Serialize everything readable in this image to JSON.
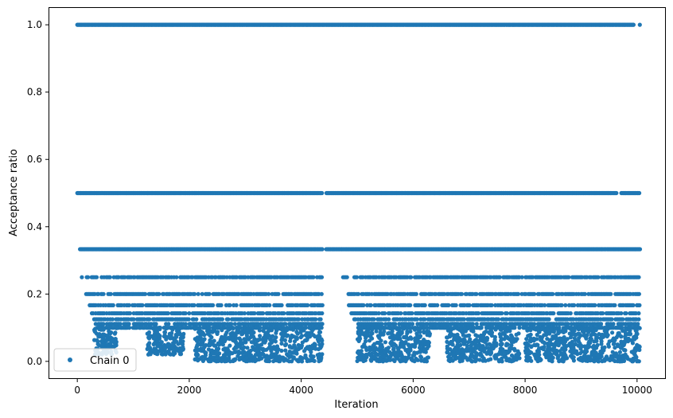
{
  "chart_data": {
    "type": "scatter",
    "title": "",
    "xlabel": "Iteration",
    "ylabel": "Acceptance ratio",
    "xlim": [
      -500,
      10500
    ],
    "ylim": [
      -0.05,
      1.05
    ],
    "xticks": [
      0,
      2000,
      4000,
      6000,
      8000,
      10000
    ],
    "xtick_labels": [
      "0",
      "2000",
      "4000",
      "6000",
      "8000",
      "10000"
    ],
    "yticks": [
      0.0,
      0.2,
      0.4,
      0.6,
      0.8,
      1.0
    ],
    "ytick_labels": [
      "0.0",
      "0.2",
      "0.4",
      "0.6",
      "0.8",
      "1.0"
    ],
    "grid": false,
    "legend": {
      "position": "lower-left",
      "entries": [
        "Chain 0"
      ]
    },
    "series": [
      {
        "name": "Chain 0",
        "color": "#1f77b4",
        "marker": "circle",
        "bands": [
          {
            "y": 1.0,
            "x_ranges": [
              [
                0,
                9950
              ],
              [
                10050,
                10050
              ]
            ]
          },
          {
            "y": 0.5,
            "x_ranges": [
              [
                0,
                4380
              ],
              [
                4450,
                9630
              ],
              [
                9720,
                10050
              ]
            ]
          },
          {
            "y": 0.3333,
            "x_ranges": [
              [
                50,
                4380
              ],
              [
                4450,
                10050
              ]
            ]
          },
          {
            "y": 0.25,
            "x_ranges": [
              [
                80,
                4380
              ],
              [
                4750,
                4820
              ],
              [
                4950,
                10050
              ]
            ]
          },
          {
            "y": 0.2,
            "x_ranges": [
              [
                160,
                4380
              ],
              [
                4800,
                10050
              ]
            ]
          },
          {
            "y": 0.1667,
            "x_ranges": [
              [
                220,
                4380
              ],
              [
                4850,
                10050
              ]
            ]
          },
          {
            "y": 0.1429,
            "x_ranges": [
              [
                260,
                4380
              ],
              [
                4900,
                10050
              ]
            ]
          },
          {
            "y": 0.125,
            "x_ranges": [
              [
                300,
                4380
              ],
              [
                4950,
                10050
              ]
            ]
          },
          {
            "y": 0.1111,
            "x_ranges": [
              [
                330,
                4380
              ],
              [
                5000,
                10050
              ]
            ]
          },
          {
            "y": 0.1,
            "x_ranges": [
              [
                360,
                4380
              ],
              [
                5020,
                10050
              ]
            ]
          }
        ],
        "dense_clusters": [
          {
            "x_range": [
              300,
              700
            ],
            "y_range": [
              0.02,
              0.1
            ]
          },
          {
            "x_range": [
              1250,
              1900
            ],
            "y_range": [
              0.02,
              0.1
            ]
          },
          {
            "x_range": [
              2100,
              4380
            ],
            "y_range": [
              0.0,
              0.1
            ]
          },
          {
            "x_range": [
              5000,
              6300
            ],
            "y_range": [
              0.0,
              0.1
            ]
          },
          {
            "x_range": [
              6600,
              7900
            ],
            "y_range": [
              0.0,
              0.1
            ]
          },
          {
            "x_range": [
              8000,
              10050
            ],
            "y_range": [
              0.0,
              0.1
            ]
          }
        ]
      }
    ]
  }
}
